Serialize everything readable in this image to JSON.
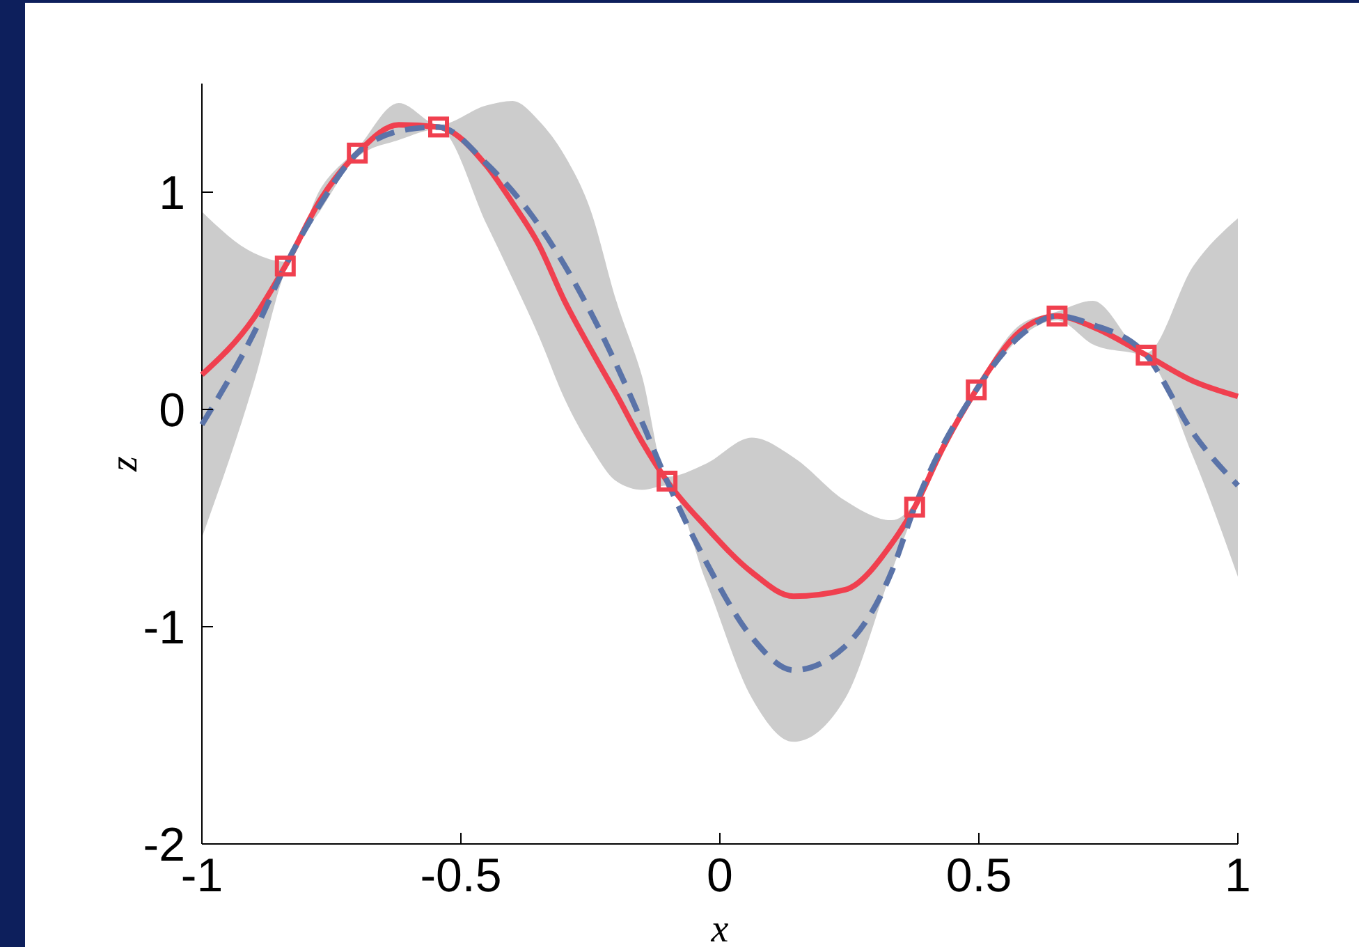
{
  "chart_data": {
    "type": "line",
    "xlabel": "x",
    "ylabel": "z",
    "xlim": [
      -1,
      1
    ],
    "ylim": [
      -2,
      1.5
    ],
    "xticks": [
      -1,
      -0.5,
      0,
      0.5,
      1
    ],
    "yticks": [
      -2,
      -1,
      0,
      1
    ],
    "grid": false,
    "series": [
      {
        "color": "#f0404f",
        "line_style": "solid",
        "marker": "none",
        "x": [
          -1,
          -0.9,
          -0.839,
          -0.77,
          -0.7,
          -0.62,
          -0.543,
          -0.45,
          -0.4,
          -0.35,
          -0.3,
          -0.25,
          -0.2,
          -0.15,
          -0.102,
          -0.027,
          0.062,
          0.142,
          0.242,
          0.331,
          0.376,
          0.43,
          0.495,
          0.58,
          0.651,
          0.72,
          0.823,
          0.914,
          1
        ],
        "values": [
          0.16,
          0.42,
          0.66,
          0.97,
          1.18,
          1.31,
          1.3,
          1.12,
          0.95,
          0.76,
          0.5,
          0.28,
          0.07,
          -0.15,
          -0.33,
          -0.54,
          -0.75,
          -0.86,
          -0.83,
          -0.62,
          -0.45,
          -0.18,
          0.09,
          0.36,
          0.43,
          0.38,
          0.25,
          0.13,
          0.06
        ],
        "lower": [
          -0.59,
          0.12,
          0.64,
          0.92,
          1.16,
          1.24,
          1.29,
          0.85,
          0.6,
          0.34,
          0.05,
          -0.17,
          -0.33,
          -0.37,
          -0.35,
          -0.79,
          -1.33,
          -1.53,
          -1.33,
          -0.75,
          -0.47,
          -0.2,
          0.07,
          0.33,
          0.41,
          0.3,
          0.24,
          -0.22,
          -0.77
        ],
        "upper": [
          0.91,
          0.72,
          0.68,
          1.02,
          1.2,
          1.41,
          1.31,
          1.4,
          1.42,
          1.33,
          1.17,
          0.92,
          0.5,
          0.15,
          -0.31,
          -0.25,
          -0.13,
          -0.22,
          -0.42,
          -0.51,
          -0.43,
          -0.15,
          0.11,
          0.39,
          0.45,
          0.5,
          0.26,
          0.66,
          0.88
        ]
      },
      {
        "color": "#5a73a8",
        "line_style": "dashed",
        "marker": "none",
        "x": [
          -1,
          -0.9,
          -0.839,
          -0.77,
          -0.7,
          -0.6,
          -0.543,
          -0.45,
          -0.35,
          -0.25,
          -0.15,
          -0.102,
          -0.027,
          0.062,
          0.142,
          0.242,
          0.331,
          0.376,
          0.495,
          0.58,
          0.651,
          0.72,
          0.823,
          0.914,
          1
        ],
        "values": [
          -0.07,
          0.35,
          0.66,
          0.95,
          1.18,
          1.29,
          1.3,
          1.13,
          0.85,
          0.45,
          -0.06,
          -0.33,
          -0.7,
          -1.05,
          -1.2,
          -1.09,
          -0.75,
          -0.45,
          0.09,
          0.34,
          0.43,
          0.39,
          0.25,
          -0.11,
          -0.35
        ]
      },
      {
        "type": "scatter",
        "color": "#f0404f",
        "marker": "square",
        "x": [
          -0.839,
          -0.7,
          -0.543,
          -0.102,
          0.376,
          0.495,
          0.651,
          0.823
        ],
        "values": [
          0.66,
          1.18,
          1.3,
          -0.33,
          -0.45,
          0.09,
          0.43,
          0.25
        ]
      }
    ]
  }
}
